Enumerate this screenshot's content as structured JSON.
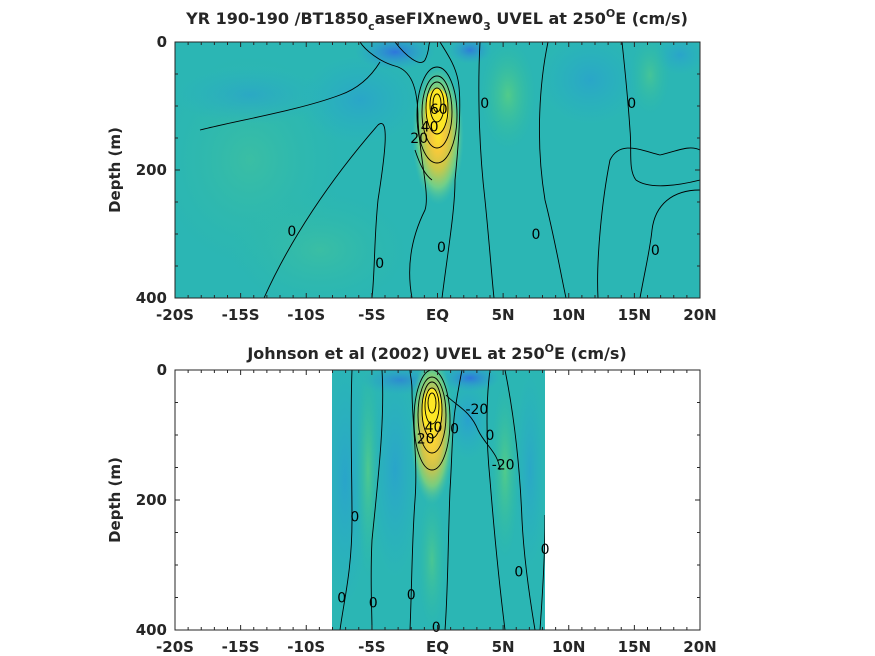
{
  "chart_data": [
    {
      "type": "heatmap",
      "title_main": "YR 190-190 /BT1850",
      "title_sub1": "c",
      "title_mid": "aseFIXnew0",
      "title_sub2": "3",
      "title_tail": " UVEL at 250",
      "title_sup": "O",
      "title_end": "E (cm/s)",
      "ylabel": "Depth (m)",
      "xlim": [
        -20,
        20
      ],
      "ylim": [
        0,
        400
      ],
      "y_reversed": true,
      "xticks": [
        "-20S",
        "-15S",
        "-10S",
        "-5S",
        "EQ",
        "5N",
        "10N",
        "15N",
        "20N"
      ],
      "xtick_values": [
        -20,
        -15,
        -10,
        -5,
        0,
        5,
        10,
        15,
        20
      ],
      "yticks": [
        "0",
        "200",
        "400"
      ],
      "ytick_values": [
        0,
        200,
        400
      ],
      "data_extent_x": [
        -20,
        20
      ],
      "jets": [
        {
          "lat": -0.2,
          "depth": 105,
          "value": 100
        },
        {
          "lat": 5,
          "depth": 70,
          "value": 18
        }
      ],
      "contour_labels": [
        {
          "text": "0",
          "lat": -11.1,
          "depth": 295
        },
        {
          "text": "0",
          "lat": -4.4,
          "depth": 345
        },
        {
          "text": "0",
          "lat": 0.3,
          "depth": 320
        },
        {
          "text": "0",
          "lat": 3.6,
          "depth": 95
        },
        {
          "text": "0",
          "lat": 7.5,
          "depth": 300
        },
        {
          "text": "0",
          "lat": 14.8,
          "depth": 95
        },
        {
          "text": "0",
          "lat": 16.6,
          "depth": 325
        },
        {
          "text": "20",
          "lat": -1.4,
          "depth": 150
        },
        {
          "text": "40",
          "lat": -0.6,
          "depth": 132
        },
        {
          "text": "60",
          "lat": 0.1,
          "depth": 105
        }
      ]
    },
    {
      "type": "heatmap",
      "title_main": "Johnson et al (2002) UVEL at 250",
      "title_sup": "O",
      "title_end": "E (cm/s)",
      "ylabel": "Depth (m)",
      "xlim": [
        -20,
        20
      ],
      "ylim": [
        0,
        400
      ],
      "y_reversed": true,
      "xticks": [
        "-20S",
        "-15S",
        "-10S",
        "-5S",
        "EQ",
        "5N",
        "10N",
        "15N",
        "20N"
      ],
      "xtick_values": [
        -20,
        -15,
        -10,
        -5,
        0,
        5,
        10,
        15,
        20
      ],
      "yticks": [
        "0",
        "200",
        "400"
      ],
      "ytick_values": [
        0,
        200,
        400
      ],
      "data_extent_x": [
        -8,
        8.3
      ],
      "jets": [
        {
          "lat": -0.2,
          "depth": 75,
          "value": 100
        },
        {
          "lat": 5.5,
          "depth": 90,
          "value": 15
        }
      ],
      "contour_labels": [
        {
          "text": "0",
          "lat": -6.3,
          "depth": 225
        },
        {
          "text": "0",
          "lat": -7.3,
          "depth": 350
        },
        {
          "text": "0",
          "lat": -4.9,
          "depth": 358
        },
        {
          "text": "0",
          "lat": -2,
          "depth": 345
        },
        {
          "text": "0",
          "lat": 1.3,
          "depth": 90
        },
        {
          "text": "0",
          "lat": 4,
          "depth": 100
        },
        {
          "text": "0",
          "lat": 6.2,
          "depth": 310
        },
        {
          "text": "0",
          "lat": 8.2,
          "depth": 275
        },
        {
          "text": "0",
          "lat": -0.1,
          "depth": 395
        },
        {
          "text": "-20",
          "lat": 3,
          "depth": 60
        },
        {
          "text": "-20",
          "lat": 5,
          "depth": 145
        },
        {
          "text": "20",
          "lat": -0.9,
          "depth": 105
        },
        {
          "text": "40",
          "lat": -0.3,
          "depth": 88
        }
      ]
    }
  ]
}
